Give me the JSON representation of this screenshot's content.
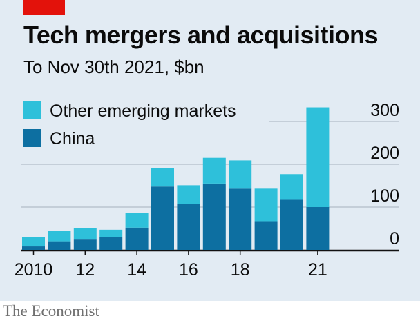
{
  "title": "Tech mergers and acquisitions",
  "subtitle": "To Nov 30th 2021, $bn",
  "source": "The Economist",
  "colors": {
    "accent": "#e3120b",
    "background": "#e2ebf3",
    "other_emerging": "#2ec0da",
    "china": "#0d6fa1",
    "grid": "#b9c5cf"
  },
  "chart_data": {
    "type": "bar",
    "stacked": true,
    "x": [
      2010,
      2011,
      2012,
      2013,
      2014,
      2015,
      2016,
      2017,
      2018,
      2019,
      2020,
      2021
    ],
    "x_tick_labels": [
      {
        "x": 2010,
        "label": "2010"
      },
      {
        "x": 2012,
        "label": "12"
      },
      {
        "x": 2014,
        "label": "14"
      },
      {
        "x": 2016,
        "label": "16"
      },
      {
        "x": 2018,
        "label": "18"
      },
      {
        "x": 2021,
        "label": "21"
      }
    ],
    "series": [
      {
        "name": "China",
        "color": "#0d6fa1",
        "values": [
          8,
          20,
          24,
          30,
          52,
          148,
          108,
          155,
          143,
          67,
          117,
          100
        ]
      },
      {
        "name": "Other emerging markets",
        "color": "#2ec0da",
        "values": [
          22,
          25,
          27,
          17,
          35,
          43,
          43,
          60,
          66,
          76,
          60,
          233
        ]
      }
    ],
    "legend": [
      "Other emerging markets",
      "China"
    ],
    "legend_position": "top-left",
    "y_ticks": [
      0,
      100,
      200,
      300
    ],
    "y_axis_side": "right",
    "ylim": [
      0,
      330
    ],
    "grid": true
  }
}
